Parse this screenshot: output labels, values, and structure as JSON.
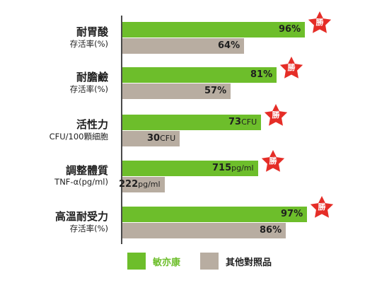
{
  "colors": {
    "primary": "#6dbe2b",
    "secondary": "#b8ada1",
    "star": "#e52d27",
    "axis": "#4a4a4a"
  },
  "chart_data": {
    "type": "bar",
    "orientation": "horizontal",
    "categories": [
      {
        "title": "耐胃酸",
        "subtitle": "存活率(%)"
      },
      {
        "title": "耐膽鹼",
        "subtitle": "存活率(%)"
      },
      {
        "title": "活性力",
        "subtitle": "CFU/100顆細胞"
      },
      {
        "title": "調整體質",
        "subtitle": "TNF-α(pg/ml)"
      },
      {
        "title": "高溫耐受力",
        "subtitle": "存活率(%)"
      }
    ],
    "series": [
      {
        "name": "敏亦康",
        "values": [
          96,
          81,
          73,
          715,
          97
        ],
        "labels": [
          {
            "num": "96",
            "unit": "%"
          },
          {
            "num": "81",
            "unit": "%"
          },
          {
            "num": "73",
            "unit": "CFU"
          },
          {
            "num": "715",
            "unit": "pg/ml"
          },
          {
            "num": "97",
            "unit": "%"
          }
        ]
      },
      {
        "name": "其他對照品",
        "values": [
          64,
          57,
          30,
          222,
          86
        ],
        "labels": [
          {
            "num": "64",
            "unit": "%"
          },
          {
            "num": "57",
            "unit": "%"
          },
          {
            "num": "30",
            "unit": "CFU"
          },
          {
            "num": "222",
            "unit": "pg/ml"
          },
          {
            "num": "86",
            "unit": "%"
          }
        ]
      }
    ],
    "axis_max": [
      100,
      100,
      100,
      1000,
      100
    ],
    "badge_text": "勝",
    "legend_position": "bottom"
  }
}
